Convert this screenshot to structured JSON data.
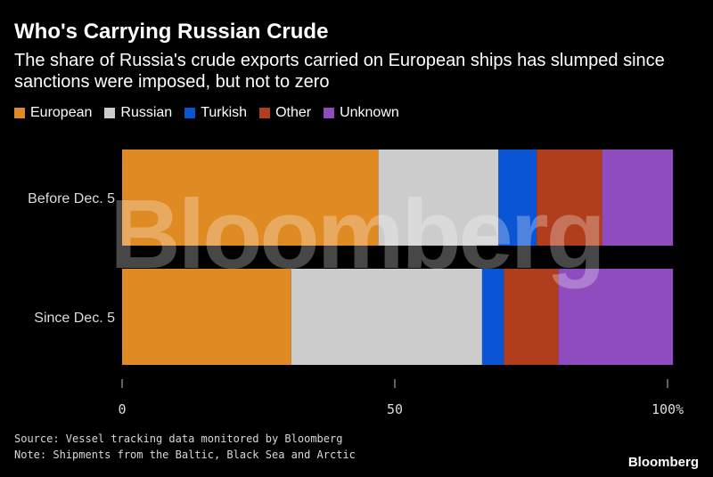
{
  "title": "Who's Carrying Russian Crude",
  "subtitle": "The share of Russia's crude exports carried on European ships has slumped since sanctions were imposed, but not to zero",
  "source": "Source: Vessel tracking data monitored by Bloomberg",
  "note": "Note: Shipments from the Baltic, Black Sea and Arctic",
  "brand": "Bloomberg",
  "watermark": "Bloomberg",
  "colors": {
    "European": "#e08a23",
    "Russian": "#cccccc",
    "Turkish": "#0a55d4",
    "Other": "#b03d1c",
    "Unknown": "#8e4cbe"
  },
  "chart_data": {
    "type": "bar",
    "orientation": "horizontal",
    "stacked": true,
    "categories": [
      "Before Dec. 5",
      "Since Dec. 5"
    ],
    "series": [
      {
        "name": "European",
        "values": [
          47,
          31
        ]
      },
      {
        "name": "Russian",
        "values": [
          22,
          35
        ]
      },
      {
        "name": "Turkish",
        "values": [
          7,
          4
        ]
      },
      {
        "name": "Other",
        "values": [
          12,
          10
        ]
      },
      {
        "name": "Unknown",
        "values": [
          13,
          21
        ]
      }
    ],
    "xlim": [
      0,
      100
    ],
    "xticks": [
      "0",
      "50",
      "100%"
    ],
    "xtick_values": [
      0,
      50,
      100
    ],
    "legend_position": "top-left"
  }
}
